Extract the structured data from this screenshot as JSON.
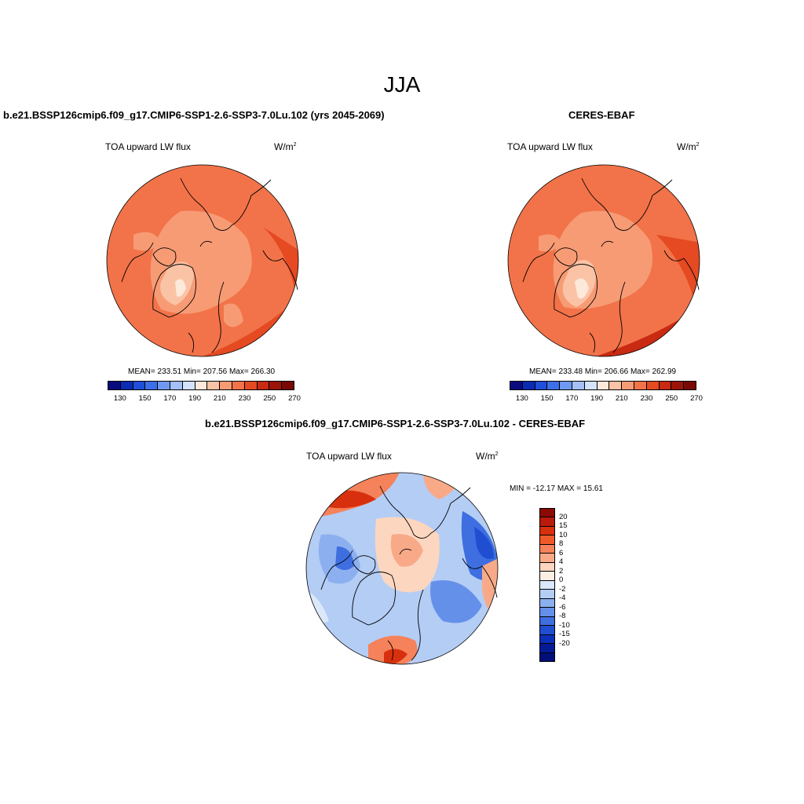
{
  "title": "JJA",
  "panels": {
    "model": {
      "title": "b.e21.BSSP126cmip6.f09_g17.CMIP6-SSP1-2.6-SSP3-7.0Lu.102 (yrs 2045-2069)",
      "variable": "TOA upward LW flux",
      "unit": "W/m",
      "unit_exp": "2",
      "stats": "MEAN= 233.51  Min= 207.56  Max= 266.30"
    },
    "obs": {
      "title": "CERES-EBAF",
      "variable": "TOA upward LW flux",
      "unit": "W/m",
      "unit_exp": "2",
      "stats": "MEAN= 233.48  Min= 206.66  Max= 262.99"
    },
    "diff": {
      "title": "b.e21.BSSP126cmip6.f09_g17.CMIP6-SSP1-2.6-SSP3-7.0Lu.102 - CERES-EBAF",
      "variable": "TOA upward LW flux",
      "unit": "W/m",
      "unit_exp": "2",
      "stats": "MIN = -12.17 MAX =  15.61"
    }
  },
  "abs_colorbar": {
    "colors": [
      "#0b0b80",
      "#0a2bb4",
      "#1f4fd8",
      "#3d6fe8",
      "#6f98f2",
      "#a4c0f7",
      "#d4e3fb",
      "#fde9da",
      "#fbc3a6",
      "#f79b75",
      "#f27349",
      "#e54a22",
      "#c82a12",
      "#9c1408",
      "#7a0804"
    ],
    "tick_labels": [
      "130",
      "150",
      "170",
      "190",
      "210",
      "230",
      "250",
      "270"
    ]
  },
  "diff_colorbar": {
    "colors": [
      "#8c0a04",
      "#b81a0c",
      "#d8300e",
      "#ef5a2a",
      "#f5825a",
      "#f8aa88",
      "#fcd6bf",
      "#fdeee4",
      "#dbe8fa",
      "#b4cdf5",
      "#8cb0ef",
      "#6590ea",
      "#3e6ee0",
      "#1f4fd0",
      "#0c2fb8",
      "#061a96",
      "#020f7a"
    ],
    "tick_labels": [
      "20",
      "15",
      "10",
      "8",
      "6",
      "4",
      "2",
      "0",
      "-2",
      "-4",
      "-6",
      "-8",
      "-10",
      "-15",
      "-20"
    ]
  }
}
